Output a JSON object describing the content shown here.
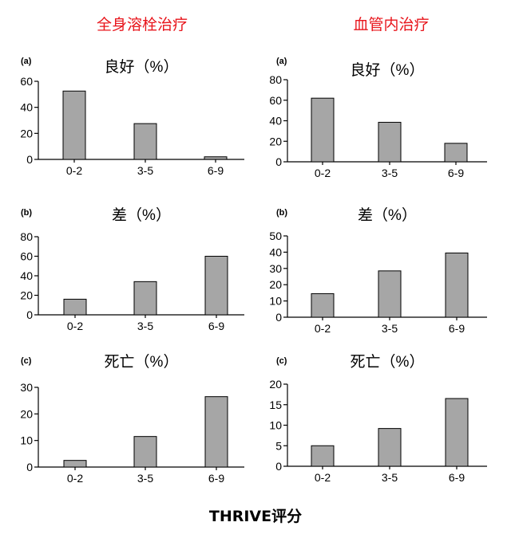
{
  "column_titles": [
    "全身溶栓治疗",
    "血管内治疗"
  ],
  "x_axis_title": "THRIVE评分",
  "chart_data": [
    {
      "type": "bar",
      "panel": "(a)",
      "title": "良好（%）",
      "column": "全身溶栓治疗",
      "categories": [
        "0-2",
        "3-5",
        "6-9"
      ],
      "values": [
        52.5,
        27.5,
        2
      ],
      "ylim": [
        0,
        60
      ],
      "yticks": [
        0,
        20,
        40,
        60
      ]
    },
    {
      "type": "bar",
      "panel": "(a)",
      "title": "良好（%）",
      "column": "血管内治疗",
      "categories": [
        "0-2",
        "3-5",
        "6-9"
      ],
      "values": [
        62,
        38.5,
        18
      ],
      "ylim": [
        0,
        80
      ],
      "yticks": [
        0,
        20,
        40,
        60,
        80
      ]
    },
    {
      "type": "bar",
      "panel": "(b)",
      "title": "差（%）",
      "column": "全身溶栓治疗",
      "categories": [
        "0-2",
        "3-5",
        "6-9"
      ],
      "values": [
        16,
        34,
        60
      ],
      "ylim": [
        0,
        80
      ],
      "yticks": [
        0,
        20,
        40,
        60,
        80
      ]
    },
    {
      "type": "bar",
      "panel": "(b)",
      "title": "差（%）",
      "column": "血管内治疗",
      "categories": [
        "0-2",
        "3-5",
        "6-9"
      ],
      "values": [
        14.5,
        28.5,
        39.5
      ],
      "ylim": [
        0,
        50
      ],
      "yticks": [
        0,
        10,
        20,
        30,
        40,
        50
      ]
    },
    {
      "type": "bar",
      "panel": "(c)",
      "title": "死亡（%）",
      "column": "全身溶栓治疗",
      "categories": [
        "0-2",
        "3-5",
        "6-9"
      ],
      "values": [
        2.5,
        11.5,
        26.5
      ],
      "ylim": [
        0,
        30
      ],
      "yticks": [
        0,
        10,
        20,
        30
      ]
    },
    {
      "type": "bar",
      "panel": "(c)",
      "title": "死亡（%）",
      "column": "血管内治疗",
      "categories": [
        "0-2",
        "3-5",
        "6-9"
      ],
      "values": [
        5,
        9.2,
        16.5
      ],
      "ylim": [
        0,
        20
      ],
      "yticks": [
        0,
        5,
        10,
        15,
        20
      ]
    }
  ],
  "colors": {
    "bar_fill": "#a6a6a6",
    "bar_stroke": "#000000",
    "column_title": "#e8141b"
  }
}
